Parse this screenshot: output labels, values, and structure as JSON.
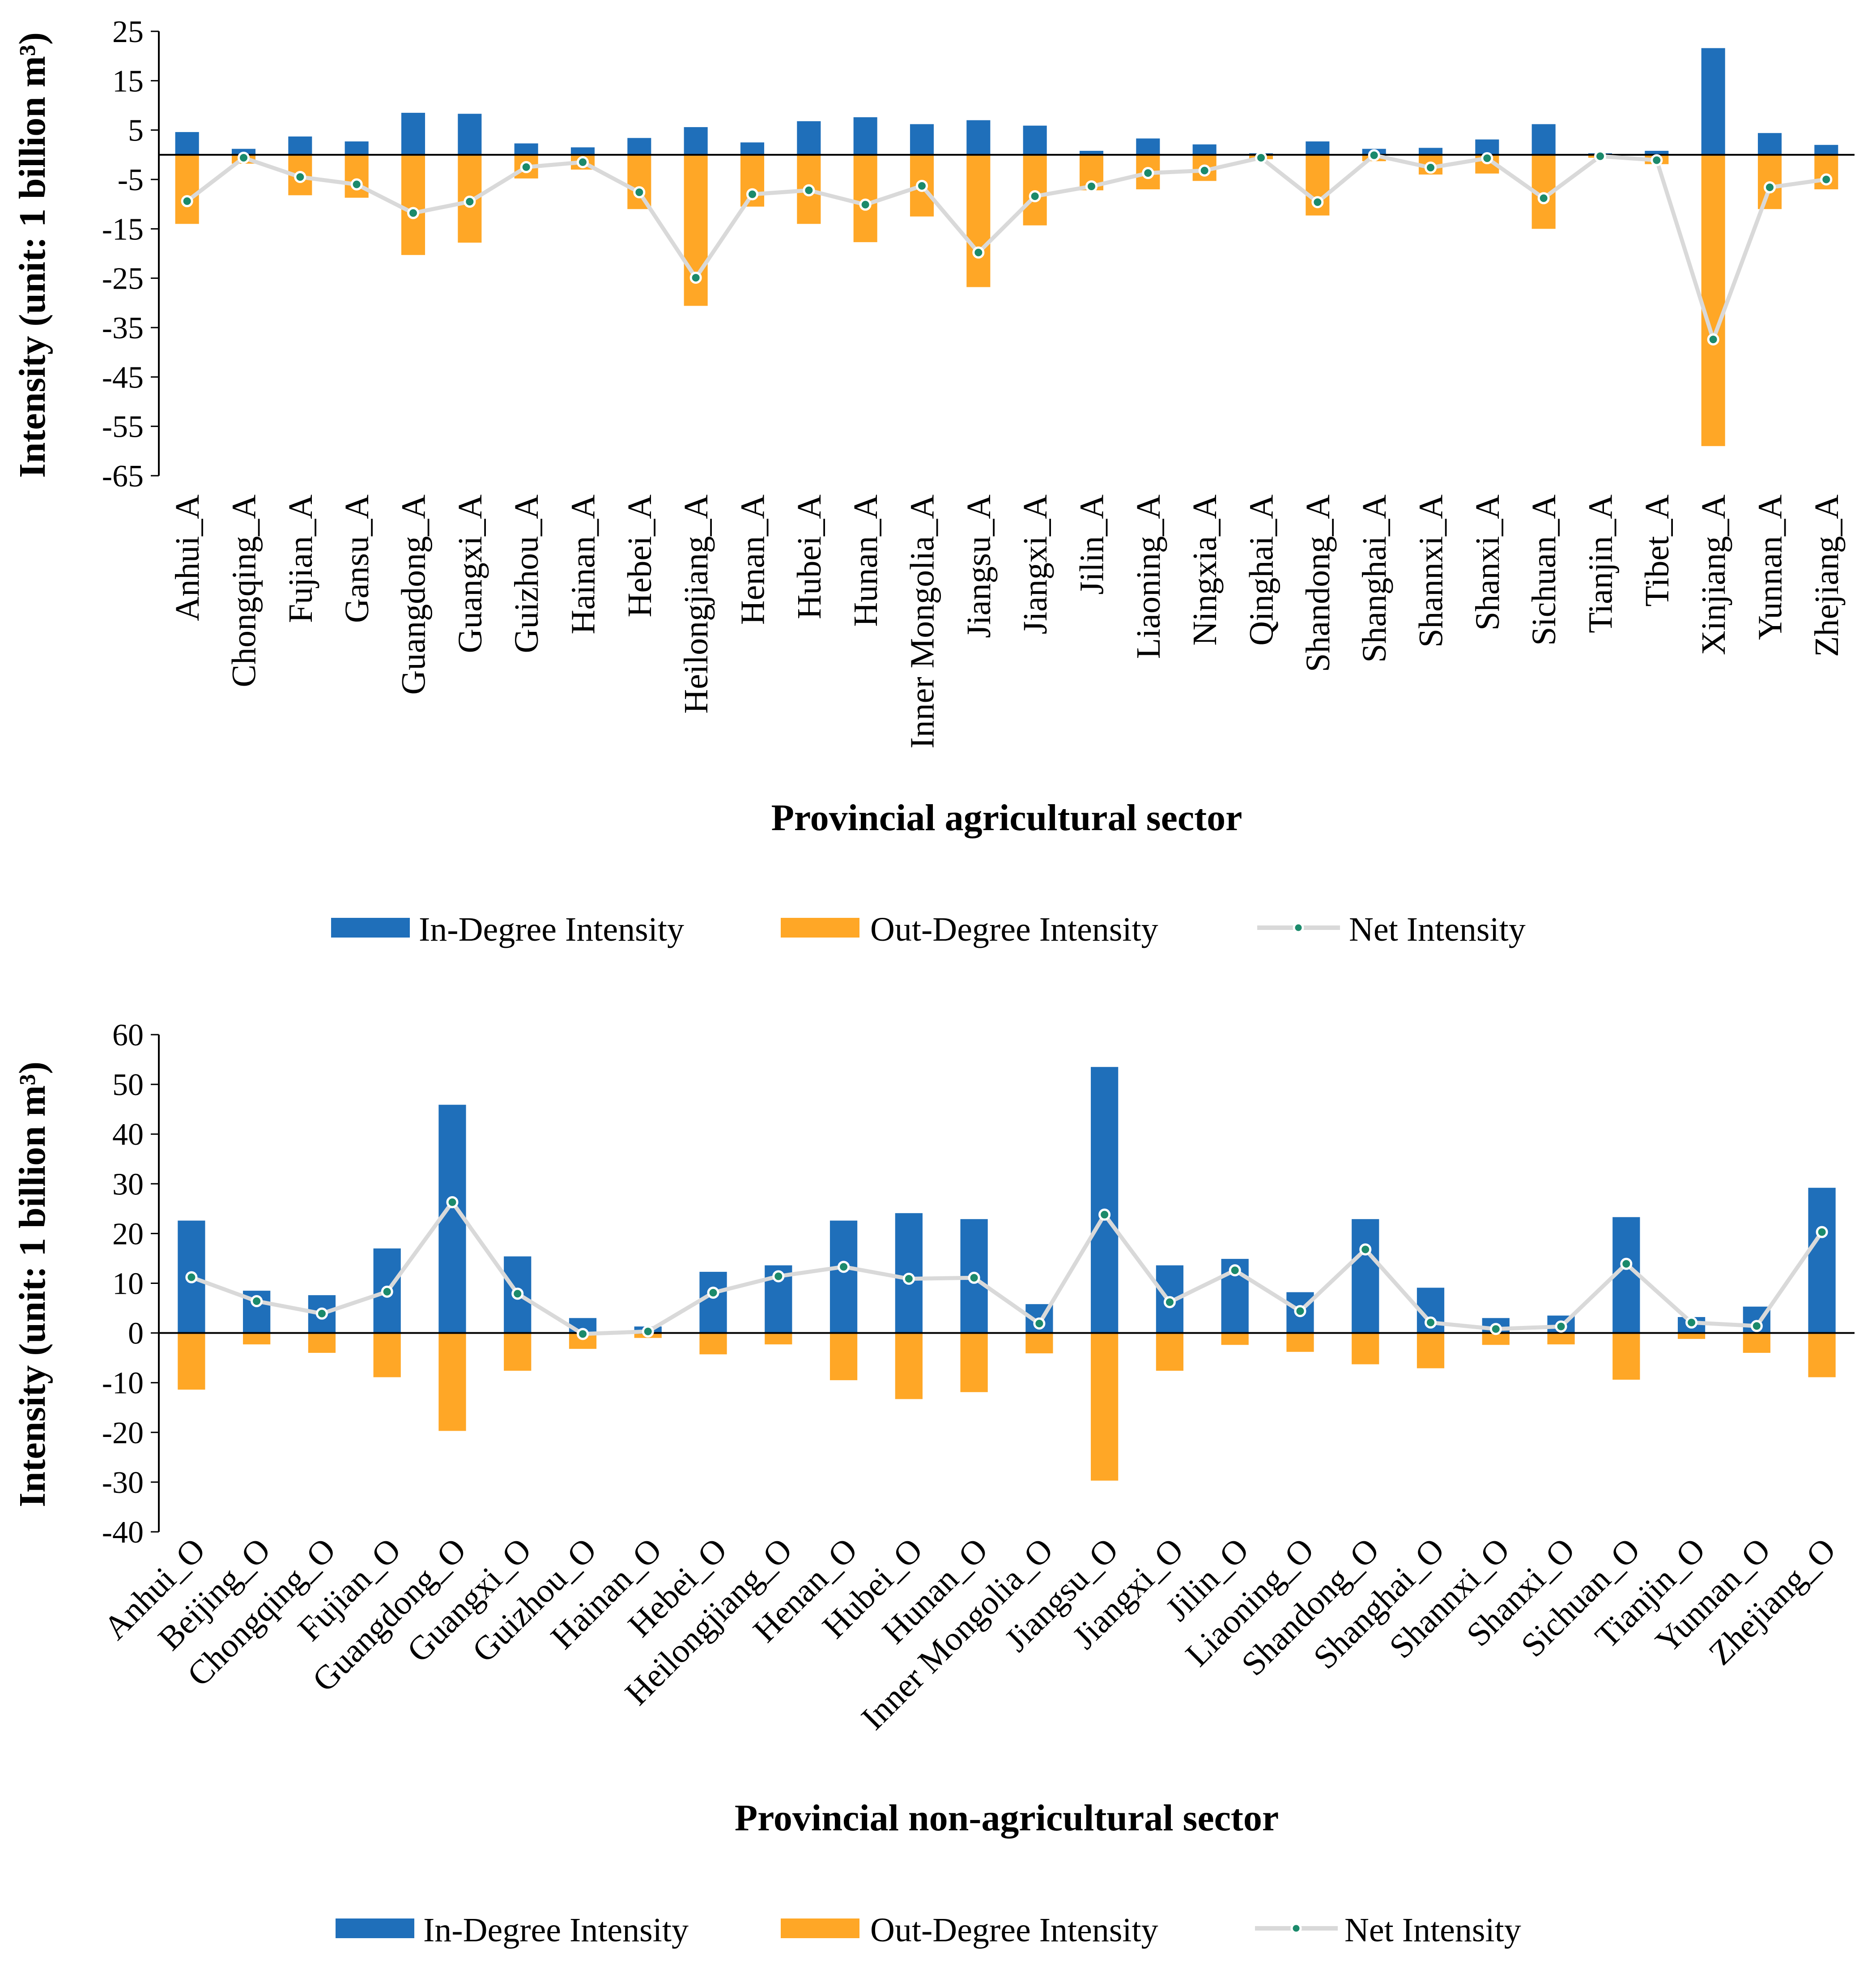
{
  "colors": {
    "in_degree": "#1f6fba",
    "out_degree": "#ffa726",
    "net_line": "#d9d9d9",
    "net_marker": "#1b8a6b",
    "net_marker_edge": "#ffffff"
  },
  "chart_data": [
    {
      "type": "bar",
      "title": "",
      "xlabel": "Provincial agricultural sector",
      "ylabel": "Intensity (unit: 1 billion m³)",
      "ylim": [
        -65,
        25
      ],
      "yticks": [
        25,
        15,
        5,
        -5,
        -15,
        -25,
        -35,
        -45,
        -55,
        -65
      ],
      "categories": [
        "Anhui_A",
        "Chongqing_A",
        "Fujian_A",
        "Gansu_A",
        "Guangdong_A",
        "Guangxi_A",
        "Guizhou_A",
        "Hainan_A",
        "Hebei_A",
        "Heilongjiang_A",
        "Henan_A",
        "Hubei_A",
        "Hunan_A",
        "Inner Mongolia_A",
        "Jiangsu_A",
        "Jiangxi_A",
        "Jilin_A",
        "Liaoning_A",
        "Ningxia_A",
        "Qinghai_A",
        "Shandong_A",
        "Shanghai_A",
        "Shannxi_A",
        "Shanxi_A",
        "Sichuan_A",
        "Tianjin_A",
        "Tibet_A",
        "Xinjiang_A",
        "Yunnan_A",
        "Zhejiang_A"
      ],
      "series": [
        {
          "name": "In-Degree Intensity",
          "values": [
            4.6,
            1.2,
            3.7,
            2.7,
            8.5,
            8.3,
            2.3,
            1.5,
            3.4,
            5.6,
            2.5,
            6.8,
            7.6,
            6.2,
            7.0,
            5.9,
            0.8,
            3.3,
            2.1,
            0.3,
            2.7,
            1.2,
            1.4,
            3.1,
            6.2,
            0.3,
            0.8,
            21.6,
            4.4,
            2.0
          ]
        },
        {
          "name": "Out-Degree Intensity",
          "values": [
            -14.0,
            -1.8,
            -8.2,
            -8.7,
            -20.3,
            -17.8,
            -4.8,
            -3.0,
            -11.0,
            -30.6,
            -10.5,
            -14.0,
            -17.7,
            -12.5,
            -26.8,
            -14.3,
            -7.2,
            -7.0,
            -5.3,
            -0.9,
            -12.3,
            -1.3,
            -4.0,
            -3.8,
            -15.0,
            -0.6,
            -1.9,
            -59.0,
            -11.0,
            -7.0
          ]
        },
        {
          "name": "Net Intensity",
          "values": [
            -9.4,
            -0.6,
            -4.5,
            -6.0,
            -11.8,
            -9.5,
            -2.5,
            -1.5,
            -7.6,
            -24.9,
            -8.0,
            -7.2,
            -10.1,
            -6.3,
            -19.8,
            -8.4,
            -6.4,
            -3.7,
            -3.2,
            -0.6,
            -9.6,
            -0.1,
            -2.6,
            -0.7,
            -8.8,
            -0.3,
            -1.1,
            -37.4,
            -6.6,
            -5.0
          ]
        }
      ],
      "legend": [
        "In-Degree Intensity",
        "Out-Degree Intensity",
        "Net Intensity"
      ],
      "legend_position": "bottom"
    },
    {
      "type": "bar",
      "title": "",
      "xlabel": "Provincial non-agricultural sector",
      "ylabel": "Intensity (unit: 1 billion m³)",
      "ylim": [
        -40,
        60
      ],
      "yticks": [
        60,
        50,
        40,
        30,
        20,
        10,
        0,
        -10,
        -20,
        -30,
        -40
      ],
      "categories": [
        "Anhui_O",
        "Beijing_O",
        "Chongqing_O",
        "Fujian_O",
        "Guangdong_O",
        "Guangxi_O",
        "Guizhou_O",
        "Hainan_O",
        "Hebei_O",
        "Heilongjiang_O",
        "Henan_O",
        "Hubei_O",
        "Hunan_O",
        "Inner Mongolia_O",
        "Jiangsu_O",
        "Jiangxi_O",
        "Jilin_O",
        "Liaoning_O",
        "Shandong_O",
        "Shanghai_O",
        "Shannxi_O",
        "Shanxi_O",
        "Sichuan_O",
        "Tianjin_O",
        "Yunnan_O",
        "Zhejiang_O"
      ],
      "series": [
        {
          "name": "In-Degree Intensity",
          "values": [
            22.6,
            8.5,
            7.6,
            17.0,
            45.9,
            15.4,
            3.0,
            1.3,
            12.3,
            13.6,
            22.6,
            24.1,
            22.9,
            5.8,
            53.5,
            13.6,
            14.9,
            8.2,
            22.9,
            9.1,
            3.0,
            3.5,
            23.3,
            3.2,
            5.3,
            29.2
          ]
        },
        {
          "name": "Out-Degree Intensity",
          "values": [
            -11.4,
            -2.3,
            -4.0,
            -8.9,
            -19.7,
            -7.6,
            -3.2,
            -1.0,
            -4.3,
            -2.3,
            -9.5,
            -13.3,
            -11.9,
            -4.1,
            -29.7,
            -7.6,
            -2.4,
            -3.8,
            -6.3,
            -7.1,
            -2.4,
            -2.3,
            -9.4,
            -1.2,
            -4.0,
            -8.9
          ]
        },
        {
          "name": "Net Intensity",
          "values": [
            11.2,
            6.4,
            3.9,
            8.3,
            26.3,
            7.9,
            -0.2,
            0.3,
            8.1,
            11.4,
            13.3,
            10.9,
            11.1,
            1.9,
            23.8,
            6.2,
            12.6,
            4.4,
            16.8,
            2.1,
            0.8,
            1.3,
            13.9,
            2.1,
            1.4,
            20.3
          ]
        }
      ],
      "legend": [
        "In-Degree Intensity",
        "Out-Degree Intensity",
        "Net Intensity"
      ],
      "legend_position": "bottom"
    }
  ]
}
